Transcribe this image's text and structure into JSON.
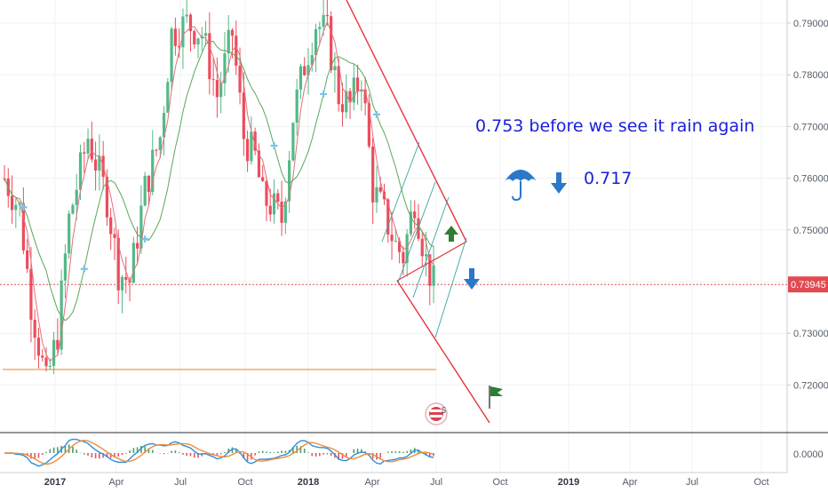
{
  "chart_data": {
    "type": "candlestick",
    "ylim": [
      0.7145,
      0.7935
    ],
    "yticks": [
      "0.79000",
      "0.78000",
      "0.77000",
      "0.76000",
      "0.75000",
      "0.74000",
      "0.73000",
      "0.72000"
    ],
    "current_price_label": "0.73945",
    "current_price": 0.73945,
    "xaxis_labels": [
      {
        "text": "2017",
        "bold": true
      },
      {
        "text": "Apr",
        "bold": false
      },
      {
        "text": "Jul",
        "bold": false
      },
      {
        "text": "Oct",
        "bold": false
      },
      {
        "text": "2018",
        "bold": true
      },
      {
        "text": "Apr",
        "bold": false
      },
      {
        "text": "Jul",
        "bold": false
      },
      {
        "text": "Oct",
        "bold": false
      },
      {
        "text": "2019",
        "bold": true
      },
      {
        "text": "Apr",
        "bold": false
      },
      {
        "text": "Jul",
        "bold": false
      },
      {
        "text": "Oct",
        "bold": false
      }
    ],
    "annotations": {
      "main_text": "0.753 before we see it rain again",
      "target_text": "0.717",
      "event_badge": "5"
    },
    "horizontal_level": 0.723,
    "indicator": {
      "name": "MACD",
      "tick_label": "0.0000",
      "ylim": [
        -0.01,
        0.01
      ]
    },
    "colors": {
      "up": "#53b987",
      "down": "#eb4d5c",
      "ma_fast": "#e2707c",
      "ma_slow": "#5aa85a",
      "channel": "#e8323f",
      "price_line": "#e24a52",
      "level_line": "#f08c3a",
      "annotation": "#1b1fd6",
      "arrow_blue": "#2a78c8",
      "arrow_green": "#2e7d32",
      "macd": "#2f8fd8",
      "signal": "#f08c3a"
    }
  }
}
